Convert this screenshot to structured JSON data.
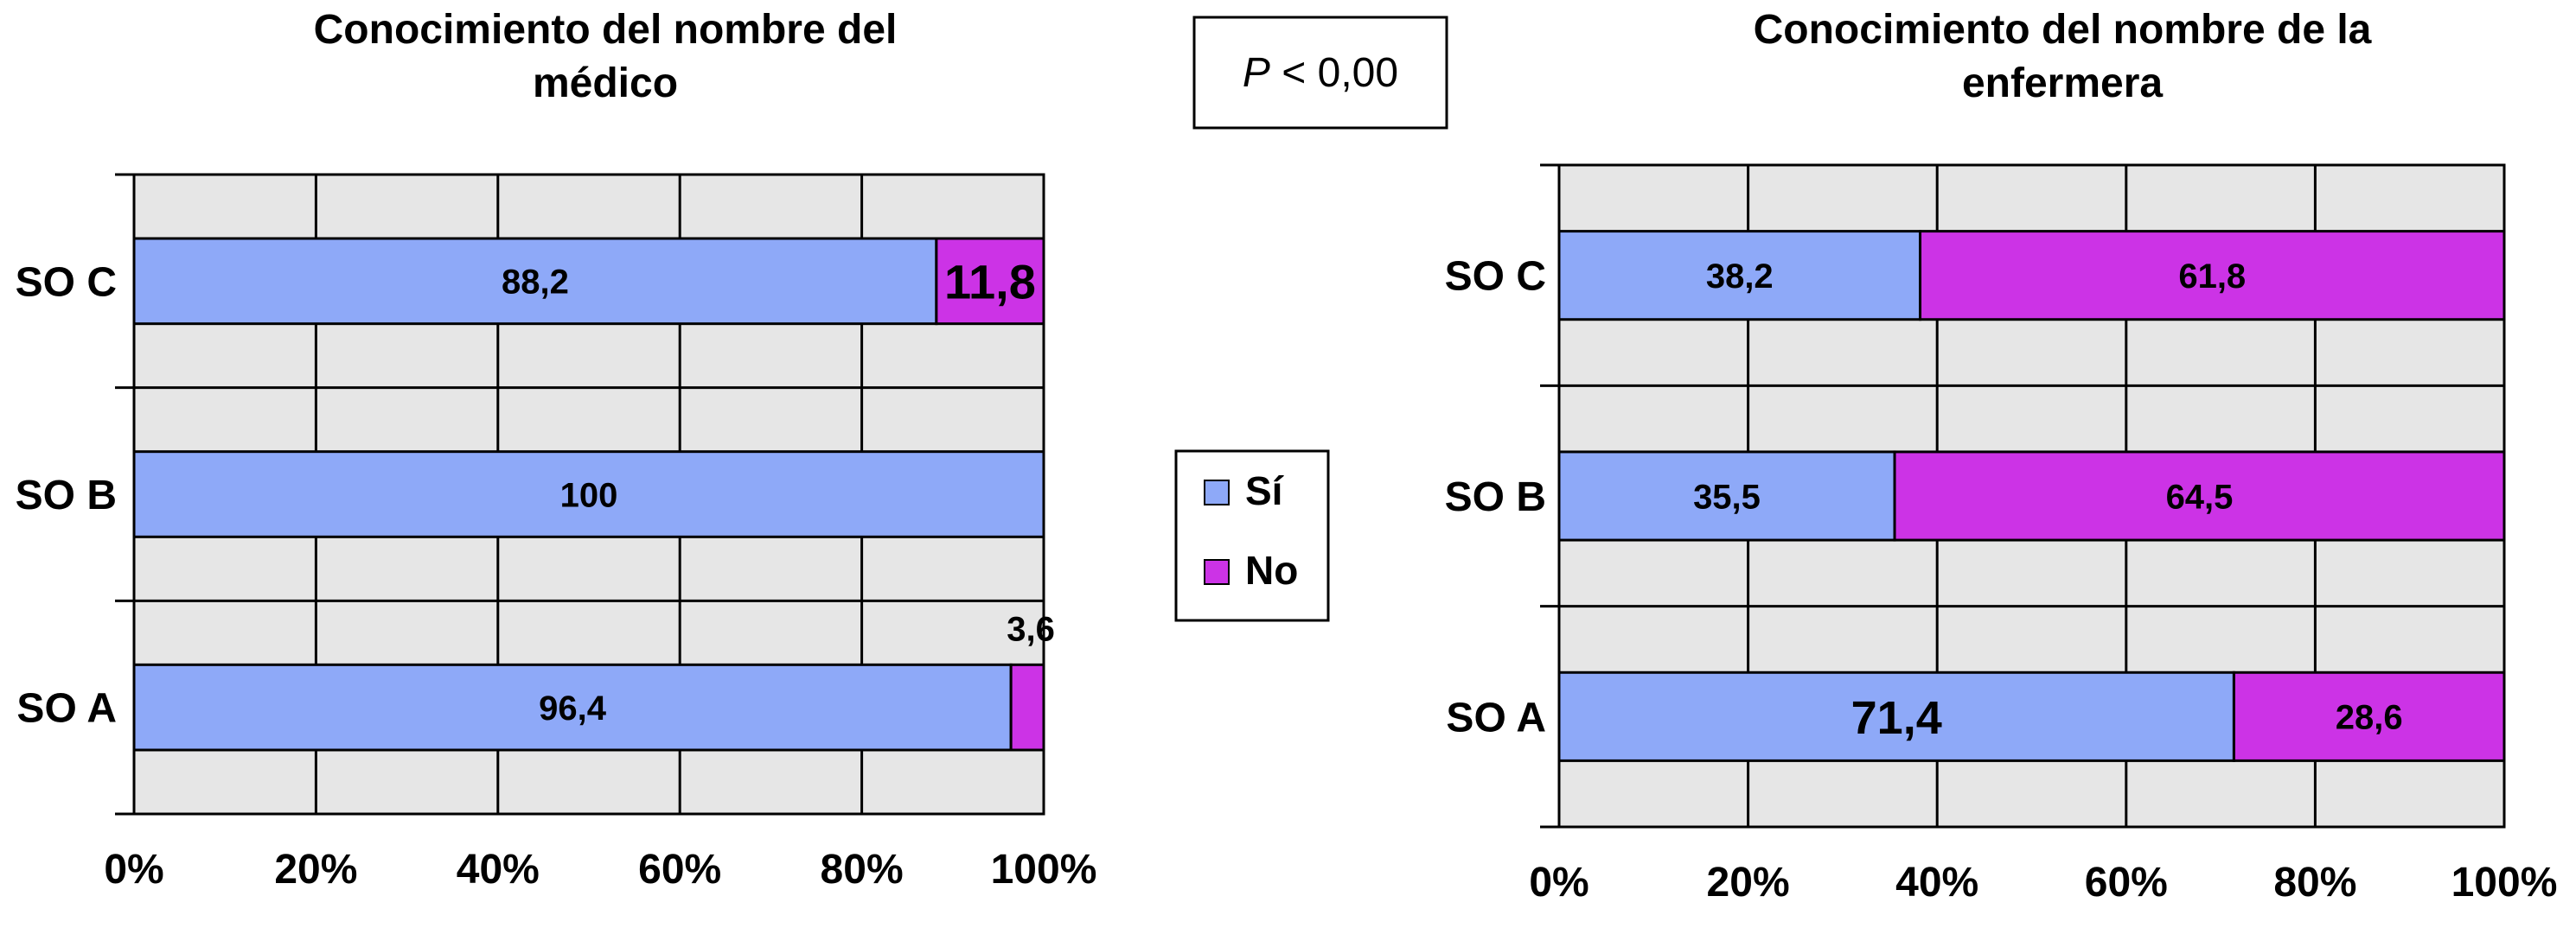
{
  "colors": {
    "si": "#8ea9f8",
    "no": "#cc33e6",
    "plot_bg": "#e6e6e6",
    "grid": "#000000"
  },
  "annotation": {
    "p_label": "P",
    "p_rest": " < 0,00"
  },
  "legend": [
    {
      "key": "si",
      "label": "Sí"
    },
    {
      "key": "no",
      "label": "No"
    }
  ],
  "chart_data": [
    {
      "type": "bar",
      "orientation": "horizontal",
      "stacked": "percent",
      "title_lines": [
        "Conocimiento del nombre del",
        "médico"
      ],
      "categories": [
        "SO A",
        "SO B",
        "SO C"
      ],
      "series": [
        {
          "name": "Sí",
          "values": [
            96.4,
            100,
            88.2
          ],
          "labels": [
            "96,4",
            "100",
            "88,2"
          ]
        },
        {
          "name": "No",
          "values": [
            3.6,
            0,
            11.8
          ],
          "labels": [
            "3,6",
            "",
            "11,8"
          ]
        }
      ],
      "xticks": [
        "0%",
        "20%",
        "40%",
        "60%",
        "80%",
        "100%"
      ],
      "xlim": [
        0,
        100
      ],
      "grid": true
    },
    {
      "type": "bar",
      "orientation": "horizontal",
      "stacked": "percent",
      "title_lines": [
        "Conocimiento del nombre de la",
        "enfermera"
      ],
      "categories": [
        "SO A",
        "SO B",
        "SO C"
      ],
      "series": [
        {
          "name": "Sí",
          "values": [
            71.4,
            35.5,
            38.2
          ],
          "labels": [
            "71,4",
            "35,5",
            "38,2"
          ]
        },
        {
          "name": "No",
          "values": [
            28.6,
            64.5,
            61.8
          ],
          "labels": [
            "28,6",
            "64,5",
            "61,8"
          ]
        }
      ],
      "xticks": [
        "0%",
        "20%",
        "40%",
        "60%",
        "80%",
        "100%"
      ],
      "xlim": [
        0,
        100
      ],
      "grid": true
    }
  ]
}
